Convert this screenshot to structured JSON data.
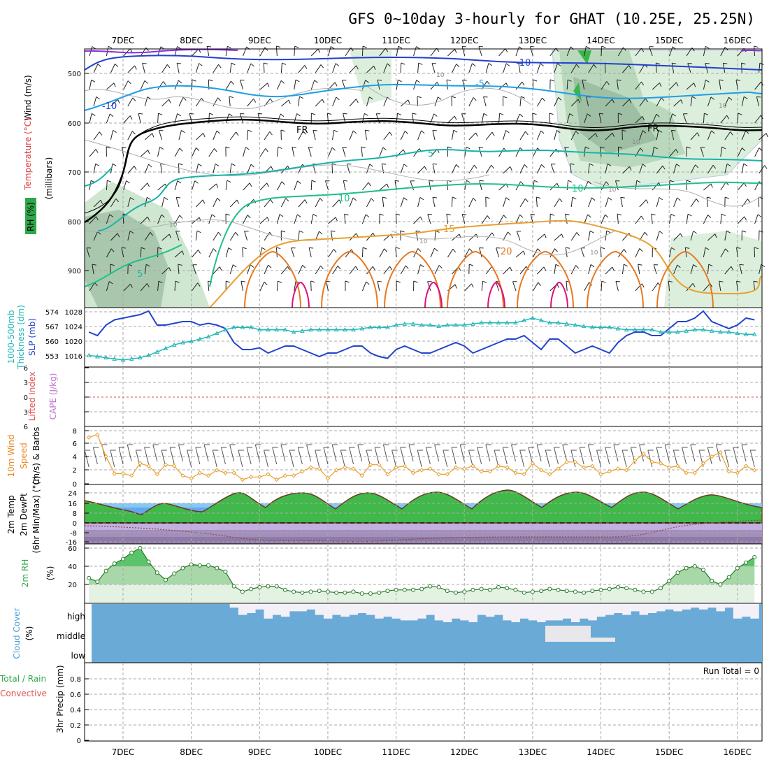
{
  "title": "GFS 0~10day 3-hourly for GHAT (10.25E, 25.25N)",
  "days": [
    "7DEC",
    "8DEC",
    "9DEC",
    "10DEC",
    "11DEC",
    "12DEC",
    "13DEC",
    "14DEC",
    "15DEC",
    "16DEC"
  ],
  "colors": {
    "temp_minus15": "#8a2be2",
    "temp_minus10": "#2240d0",
    "temp_minus5": "#1e9ee6",
    "temp_5": "#16b5a8",
    "temp_10": "#1ec08a",
    "temp_15": "#e8a030",
    "temp_20": "#e87820",
    "temp_25": "#e0107a",
    "freezing": "#000000",
    "slp": "#2244cc",
    "thickness": "#22b8b8",
    "wind10m": "#e8a030",
    "rh": "#2ea84a",
    "cloud_bg": "#6aaad6",
    "cloud_fill": "#f3f0f8",
    "rain_zero_line": "#e05050"
  },
  "panels": {
    "upper": {
      "axis_label_wind": "Wind (m/s)",
      "axis_label_temp": "Temperature (°C)",
      "axis_label_mb": "(millibars)",
      "axis_label_rh": "RH (%)",
      "ticks": [
        "500",
        "600",
        "700",
        "800",
        "900"
      ],
      "iso_labels": {
        "m10a": "-10",
        "m10b": "-10",
        "m5": "-5",
        "fr1": "FR",
        "fr2": "FR",
        "p5": "5",
        "p10a": "10",
        "p10b": "10",
        "p15": "15",
        "p20": "20",
        "m5low": "5"
      },
      "rh_labels": [
        "10",
        "10",
        "10",
        "10",
        "10",
        "10",
        "10"
      ]
    },
    "slp": {
      "label_thick": "1000-500mb",
      "label_thick2": "Thickness (dm)",
      "label_slp": "SLP (mb)",
      "left_ticks": [
        "574",
        "567",
        "560",
        "553"
      ],
      "right_ticks": [
        "1028",
        "1024",
        "1020",
        "1016"
      ]
    },
    "cape": {
      "label_li": "Lifted Index",
      "label_cape": "CAPE (J/kg)",
      "ticks": [
        "6",
        "3",
        "0",
        "3",
        "6"
      ]
    },
    "wind10": {
      "label1": "10m Wind",
      "label2": "Speed",
      "label3": "(m/s) & Barbs",
      "ticks": [
        "8",
        "6",
        "4",
        "2",
        "0"
      ]
    },
    "temp2m": {
      "label1": "2m Temp",
      "label2": "2m DewPt",
      "label3": "(6hr Min/Max) (°C)",
      "ticks": [
        "24",
        "16",
        "8",
        "0",
        "-8",
        "-16"
      ]
    },
    "rh2m": {
      "label1": "2m RH",
      "label2": "(%)",
      "ticks": [
        "60",
        "40",
        "20"
      ]
    },
    "cloud": {
      "label1": "Cloud Cover",
      "label2": "(%)",
      "levels": [
        "high",
        "middle",
        "low"
      ]
    },
    "precip": {
      "label1": "Total / Rain",
      "label2": "Convective",
      "label3": "3hr Precip (mm)",
      "ticks": [
        "0.8",
        "0.6",
        "0.4",
        "0.2",
        "0"
      ],
      "run_total": "Run Total = 0"
    }
  },
  "chart_data": {
    "type": "line",
    "x": [
      "6DEC12",
      "6DEC15",
      "6DEC18",
      "6DEC21",
      "7DEC00",
      "7DEC03",
      "7DEC06",
      "7DEC09",
      "7DEC12",
      "7DEC15",
      "7DEC18",
      "7DEC21",
      "8DEC00",
      "8DEC03",
      "8DEC06",
      "8DEC09",
      "8DEC12",
      "8DEC15",
      "8DEC18",
      "8DEC21",
      "9DEC00",
      "9DEC03",
      "9DEC06",
      "9DEC09",
      "9DEC12",
      "9DEC15",
      "9DEC18",
      "9DEC21",
      "10DEC00",
      "10DEC03",
      "10DEC06",
      "10DEC09",
      "10DEC12",
      "10DEC15",
      "10DEC18",
      "10DEC21",
      "11DEC00",
      "11DEC03",
      "11DEC06",
      "11DEC09",
      "11DEC12",
      "11DEC15",
      "11DEC18",
      "11DEC21",
      "12DEC00",
      "12DEC03",
      "12DEC06",
      "12DEC09",
      "12DEC12",
      "12DEC15",
      "12DEC18",
      "12DEC21",
      "13DEC00",
      "13DEC03",
      "13DEC06",
      "13DEC09",
      "13DEC12",
      "13DEC15",
      "13DEC18",
      "13DEC21",
      "14DEC00",
      "14DEC03",
      "14DEC06",
      "14DEC09",
      "14DEC12",
      "14DEC15",
      "14DEC18",
      "14DEC21",
      "15DEC00",
      "15DEC03",
      "15DEC06",
      "15DEC09",
      "15DEC12",
      "15DEC15",
      "15DEC18",
      "15DEC21",
      "16DEC00",
      "16DEC03",
      "16DEC06"
    ],
    "series": [
      {
        "name": "SLP (mb)",
        "values": [
          1022,
          1021,
          1024,
          1025.5,
          1026,
          1026.5,
          1027,
          1028,
          1024,
          1024,
          1024.5,
          1025,
          1025,
          1024,
          1024.5,
          1024,
          1023,
          1019,
          1017,
          1017,
          1017.5,
          1016,
          1017,
          1018,
          1018,
          1017,
          1016,
          1015,
          1016,
          1016,
          1017,
          1018,
          1018,
          1016,
          1015,
          1014.5,
          1017,
          1018,
          1017,
          1016,
          1016,
          1017,
          1018,
          1019,
          1018,
          1016,
          1017,
          1018,
          1019,
          1020,
          1020,
          1021,
          1019,
          1017,
          1020,
          1020,
          1018,
          1016,
          1017,
          1018,
          1017,
          1016,
          1019,
          1021,
          1022,
          1022,
          1021,
          1021,
          1023,
          1025,
          1025,
          1026,
          1028,
          1025,
          1024,
          1023,
          1024,
          1026,
          1025.5
        ]
      },
      {
        "name": "1000-500mb Thickness (dm)",
        "values": [
          555,
          554.5,
          554,
          553.5,
          553,
          553.5,
          554,
          555,
          556.5,
          558,
          559.5,
          560.5,
          561,
          562,
          563,
          564.5,
          566,
          567,
          567,
          567,
          566,
          566,
          566,
          566,
          565,
          565.5,
          566,
          566,
          566,
          566,
          566,
          566,
          566.5,
          567,
          567,
          567,
          568,
          568.5,
          568.5,
          568,
          568,
          567.5,
          568,
          568,
          568,
          568.5,
          569,
          569,
          569,
          569,
          569,
          570,
          571,
          570,
          569,
          569,
          568.5,
          568,
          567.5,
          567,
          567,
          567,
          566.5,
          566,
          566,
          566,
          566,
          565,
          565,
          565,
          565.5,
          566,
          566,
          565.5,
          565,
          565,
          564.5,
          564,
          564
        ]
      },
      {
        "name": "10m Wind Speed",
        "values": [
          6.8,
          7.2,
          4,
          1.5,
          1.5,
          1.2,
          3,
          2.6,
          1.4,
          2.8,
          2.6,
          1.2,
          0.8,
          1.6,
          1.2,
          2,
          1.6,
          1.6,
          0.6,
          1,
          1,
          1.4,
          0.6,
          1.2,
          1.2,
          1.8,
          2.4,
          2.2,
          0.8,
          2,
          2.4,
          2.2,
          1.2,
          2.8,
          2.8,
          1.4,
          2.4,
          2.6,
          1.6,
          2,
          2.2,
          1.4,
          1.4,
          2.4,
          2.2,
          2.6,
          1.8,
          1.8,
          2.6,
          2.4,
          1.6,
          1.4,
          3,
          2,
          1.4,
          2.2,
          3.2,
          3.2,
          2.4,
          2.6,
          1.4,
          1.8,
          2.2,
          2,
          3.4,
          4.4,
          3.2,
          3,
          2.4,
          2.6,
          1.6,
          1.6,
          3,
          4,
          4.6,
          1.8,
          1.6,
          2.6,
          2
        ]
      },
      {
        "name": "2m RH (%)",
        "values": [
          27,
          23,
          35,
          43,
          48,
          55,
          60,
          45,
          33,
          25,
          32,
          38,
          42,
          41,
          41,
          38,
          34,
          18,
          12,
          15,
          17,
          18,
          18,
          14,
          12,
          11,
          12,
          13,
          12,
          11,
          11,
          12,
          10,
          10,
          11,
          13,
          14,
          14,
          14,
          15,
          18,
          17,
          13,
          11,
          12,
          14,
          15,
          14,
          17,
          16,
          14,
          11,
          12,
          13,
          15,
          14,
          13,
          12,
          11,
          13,
          14,
          15,
          17,
          16,
          14,
          12,
          12,
          16,
          24,
          33,
          38,
          40,
          36,
          24,
          20,
          28,
          38,
          44,
          50
        ]
      }
    ],
    "ylim_slp": [
      1012,
      1028
    ],
    "ylim_thickness": [
      550,
      574
    ],
    "ylim_wind10": [
      0,
      8
    ],
    "ylim_rh": [
      0,
      60
    ],
    "ylim_precip": [
      0,
      1
    ],
    "grid": true
  }
}
